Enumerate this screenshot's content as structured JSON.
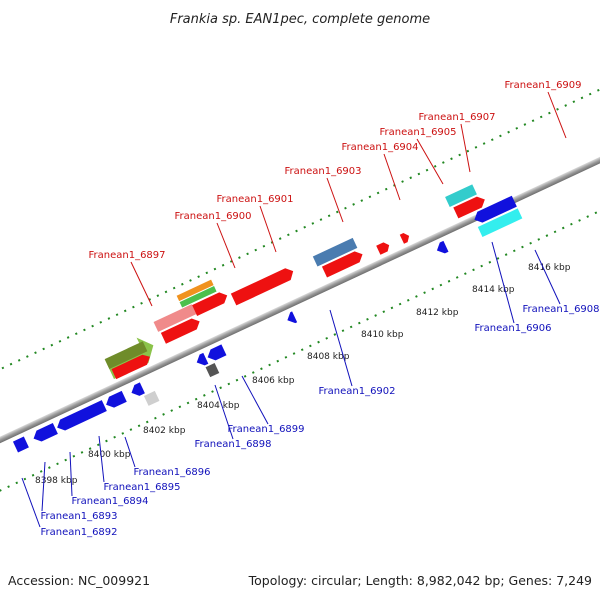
{
  "header": {
    "title": "Frankia sp. EAN1pec, complete genome"
  },
  "footer": {
    "accession": "Accession: NC_009921",
    "summary": "Topology: circular; Length: 8,982,042 bp; Genes: 7,249"
  },
  "ticks": [
    "8398 kbp",
    "8400 kbp",
    "8402 kbp",
    "8404 kbp",
    "8406 kbp",
    "8408 kbp",
    "8410 kbp",
    "8412 kbp",
    "8414 kbp",
    "8416 kbp"
  ],
  "forward_genes": [
    "Franean1_6897",
    "Franean1_6900",
    "Franean1_6901",
    "Franean1_6903",
    "Franean1_6904",
    "Franean1_6905",
    "Franean1_6907",
    "Franean1_6909"
  ],
  "reverse_genes": [
    "Franean1_6892",
    "Franean1_6893",
    "Franean1_6894",
    "Franean1_6895",
    "Franean1_6896",
    "Franean1_6898",
    "Franean1_6899",
    "Franean1_6902",
    "Franean1_6906",
    "Franean1_6908"
  ],
  "colors": {
    "forward_cds": "#ee1111",
    "reverse_cds": "#1111dd",
    "backbone": "#9a9a9a",
    "gc_ticks": "#228822"
  }
}
